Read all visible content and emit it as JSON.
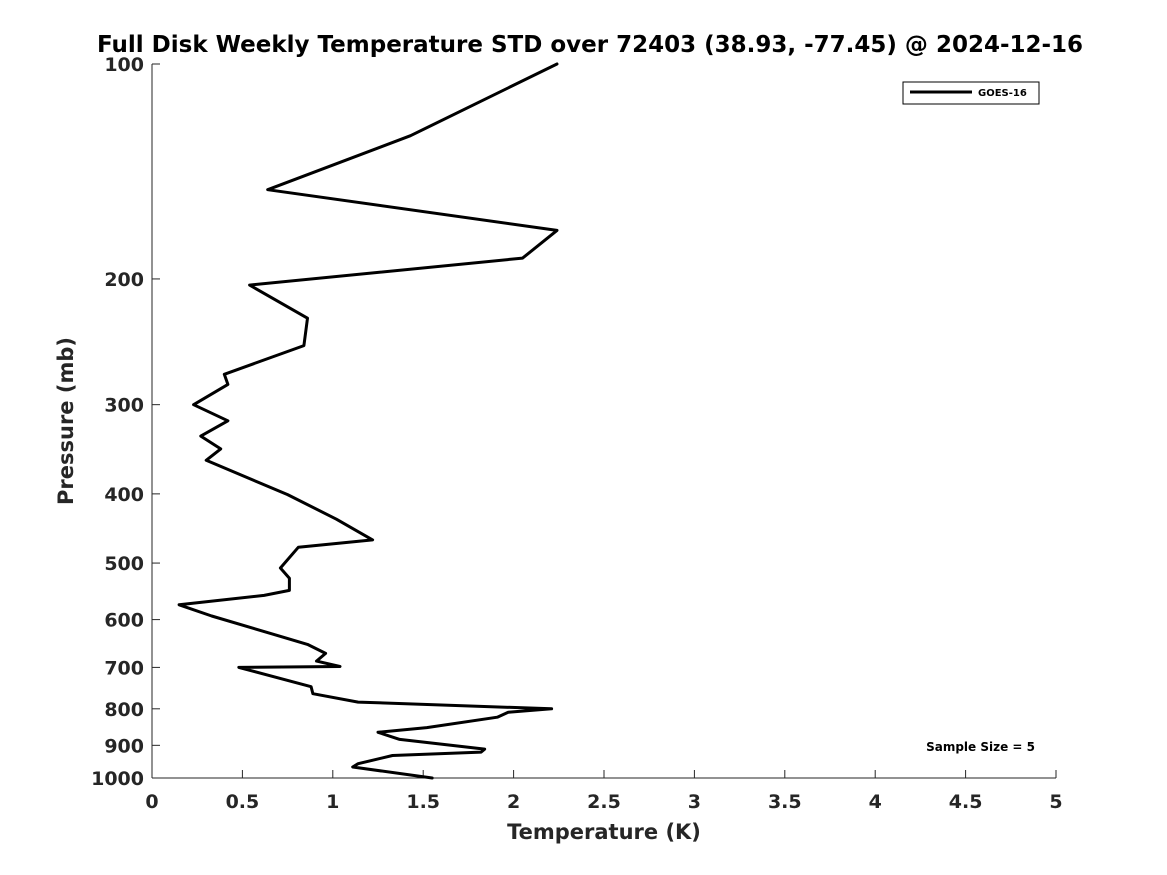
{
  "chart_data": {
    "type": "line",
    "title": "Full Disk Weekly Temperature STD over 72403 (38.93, -77.45) @ 2024-12-16",
    "xlabel": "Temperature (K)",
    "ylabel": "Pressure (mb)",
    "xlim": [
      0,
      5
    ],
    "ylim": [
      100,
      1000
    ],
    "y_scale": "log",
    "y_reversed": true,
    "grid": false,
    "legend_position": "top-right",
    "x_ticks": [
      "0",
      "0.5",
      "1",
      "1.5",
      "2",
      "2.5",
      "3",
      "3.5",
      "4",
      "4.5",
      "5"
    ],
    "x_tick_values": [
      0,
      0.5,
      1,
      1.5,
      2,
      2.5,
      3,
      3.5,
      4,
      4.5,
      5
    ],
    "y_ticks": [
      "100",
      "200",
      "300",
      "400",
      "500",
      "600",
      "700",
      "800",
      "900",
      "1000"
    ],
    "y_tick_values": [
      100,
      200,
      300,
      400,
      500,
      600,
      700,
      800,
      900,
      1000
    ],
    "series": [
      {
        "name": "GOES-16",
        "color": "#000000",
        "points": [
          [
            2.24,
            100
          ],
          [
            1.43,
            126
          ],
          [
            0.64,
            150
          ],
          [
            2.24,
            171
          ],
          [
            2.05,
            187
          ],
          [
            0.54,
            204
          ],
          [
            0.86,
            227
          ],
          [
            0.84,
            248
          ],
          [
            0.4,
            272
          ],
          [
            0.42,
            281
          ],
          [
            0.23,
            300
          ],
          [
            0.42,
            316
          ],
          [
            0.27,
            332
          ],
          [
            0.38,
            346
          ],
          [
            0.3,
            359
          ],
          [
            0.75,
            401
          ],
          [
            1.02,
            434
          ],
          [
            1.22,
            464
          ],
          [
            0.81,
            475
          ],
          [
            0.71,
            508
          ],
          [
            0.76,
            525
          ],
          [
            0.76,
            546
          ],
          [
            0.62,
            555
          ],
          [
            0.15,
            572
          ],
          [
            0.33,
            593
          ],
          [
            0.86,
            650
          ],
          [
            0.96,
            669
          ],
          [
            0.91,
            686
          ],
          [
            1.04,
            698
          ],
          [
            0.48,
            700
          ],
          [
            0.88,
            745
          ],
          [
            0.89,
            762
          ],
          [
            1.14,
            783
          ],
          [
            2.21,
            800
          ],
          [
            1.97,
            809
          ],
          [
            1.91,
            822
          ],
          [
            1.52,
            850
          ],
          [
            1.25,
            863
          ],
          [
            1.37,
            883
          ],
          [
            1.84,
            911
          ],
          [
            1.82,
            920
          ],
          [
            1.33,
            930
          ],
          [
            1.14,
            955
          ],
          [
            1.11,
            965
          ],
          [
            1.55,
            1000
          ]
        ]
      }
    ],
    "annotation": "Sample Size = 5"
  }
}
